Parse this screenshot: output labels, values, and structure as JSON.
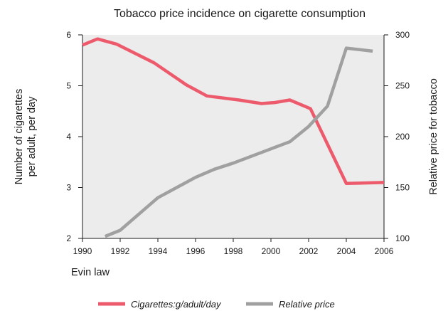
{
  "chart_data": {
    "type": "line",
    "title": "Tobacco price incidence on cigarette consumption",
    "xlabel": "",
    "xlim": [
      1990,
      2006
    ],
    "x_ticks": [
      "1990",
      "1992",
      "1994",
      "1996",
      "1998",
      "2000",
      "2002",
      "2004",
      "2006"
    ],
    "annotation": "Evin law",
    "y_left": {
      "label_lines": [
        "Number of cigarettes",
        "per adult, per day"
      ],
      "lim": [
        2,
        6
      ],
      "ticks": [
        "2",
        "3",
        "4",
        "5",
        "6"
      ]
    },
    "y_right": {
      "label": "Relative price for tobacco",
      "lim": [
        100,
        300
      ],
      "ticks": [
        "100",
        "150",
        "200",
        "250",
        "300"
      ]
    },
    "grid": false,
    "legend_position": "bottom",
    "series": [
      {
        "name": "Cigarettes:g/adult/day",
        "axis": "left",
        "color": "#ec5a6c",
        "x": [
          1990,
          1990.8,
          1991.8,
          1993.8,
          1995.5,
          1996.6,
          1998.3,
          1999.5,
          2000.2,
          2001,
          2002.1,
          2004,
          2006
        ],
        "y": [
          5.8,
          5.92,
          5.82,
          5.45,
          5.02,
          4.8,
          4.72,
          4.65,
          4.67,
          4.72,
          4.55,
          3.08,
          3.1
        ]
      },
      {
        "name": "Relative price",
        "axis": "right",
        "color": "#a0a0a0",
        "x": [
          1991.2,
          1992,
          1993,
          1994,
          1995,
          1996,
          1997,
          1998,
          1999,
          2000,
          2001,
          2002,
          2003,
          2004,
          2005.4
        ],
        "y": [
          102,
          108,
          124,
          140,
          150,
          160,
          168,
          174,
          181,
          188,
          195,
          210,
          230,
          287,
          284
        ]
      }
    ]
  }
}
